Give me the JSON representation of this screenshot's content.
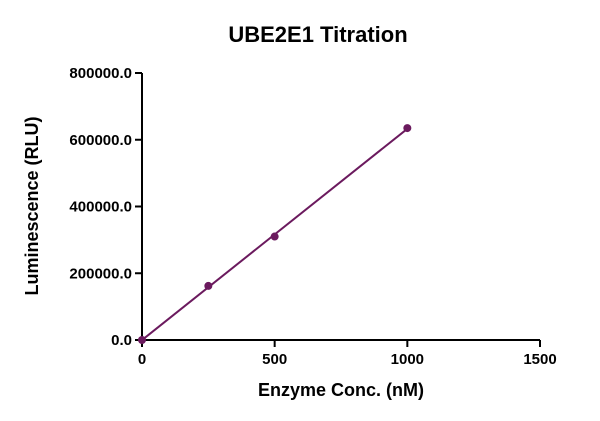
{
  "chart_data": {
    "type": "scatter",
    "title": "UBE2E1 Titration",
    "xlabel": "Enzyme Conc. (nM)",
    "ylabel": "Luminescence (RLU)",
    "xlim": [
      0,
      1500
    ],
    "ylim": [
      0,
      800000
    ],
    "xticks": [
      0,
      500,
      1000,
      1500
    ],
    "xtick_labels": [
      "0",
      "500",
      "1000",
      "1500"
    ],
    "yticks": [
      0,
      200000,
      400000,
      600000,
      800000
    ],
    "ytick_labels": [
      "0.0",
      "200000.0",
      "400000.0",
      "600000.0",
      "800000.0"
    ],
    "grid": false,
    "series": [
      {
        "x": [
          0,
          250,
          500,
          1000
        ],
        "y": [
          0,
          162000,
          310000,
          635000
        ],
        "color": "#6b1a5e",
        "fit_line": true
      }
    ]
  }
}
